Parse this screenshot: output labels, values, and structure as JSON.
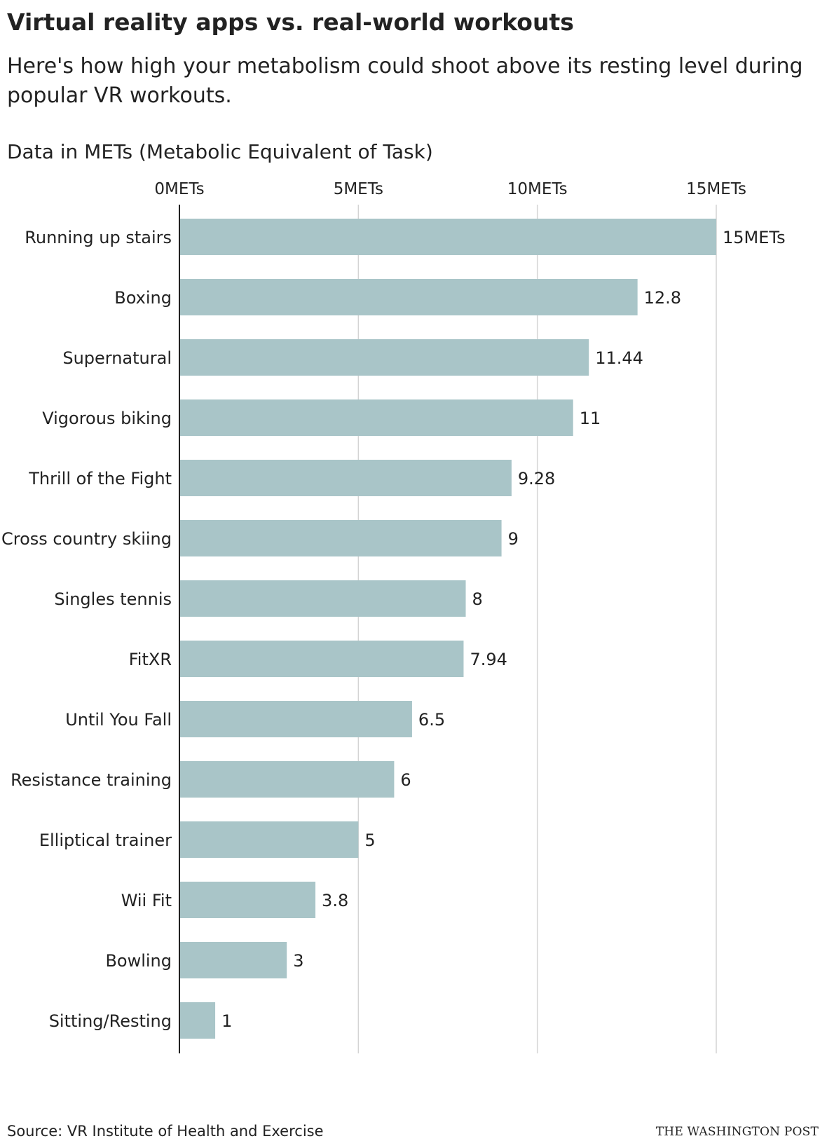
{
  "header": {
    "title": "Virtual reality apps vs. real-world workouts",
    "subtitle": "Here's how high your metabolism could shoot above its resting level during popular VR workouts.",
    "units_note": "Data in METs (Metabolic Equivalent of Task)"
  },
  "footer": {
    "source": "Source: VR Institute of Health and Exercise",
    "credit": "THE WASHINGTON POST"
  },
  "colors": {
    "bar": "#a9c5c8",
    "grid": "#d4d4d4",
    "axis": "#222222",
    "text": "#222222"
  },
  "chart_data": {
    "type": "bar",
    "orientation": "horizontal",
    "categories": [
      "Running up stairs",
      "Boxing",
      "Supernatural",
      "Vigorous biking",
      "Thrill of the Fight",
      "Cross country skiing",
      "Singles tennis",
      "FitXR",
      "Until You Fall",
      "Resistance training",
      "Elliptical trainer",
      "Wii Fit",
      "Bowling",
      "Sitting/Resting"
    ],
    "values": [
      15,
      12.8,
      11.44,
      11,
      9.28,
      9,
      8,
      7.94,
      6.5,
      6,
      5,
      3.8,
      3,
      1
    ],
    "value_labels": [
      "15METs",
      "12.8",
      "11.44",
      "11",
      "9.28",
      "9",
      "8",
      "7.94",
      "6.5",
      "6",
      "5",
      "3.8",
      "3",
      "1"
    ],
    "xticks": [
      0,
      5,
      10,
      15
    ],
    "xtick_labels": [
      "0METs",
      "5METs",
      "10METs",
      "15METs"
    ],
    "xlim": [
      0,
      15
    ],
    "grid": true,
    "x_axis_position": "top"
  }
}
